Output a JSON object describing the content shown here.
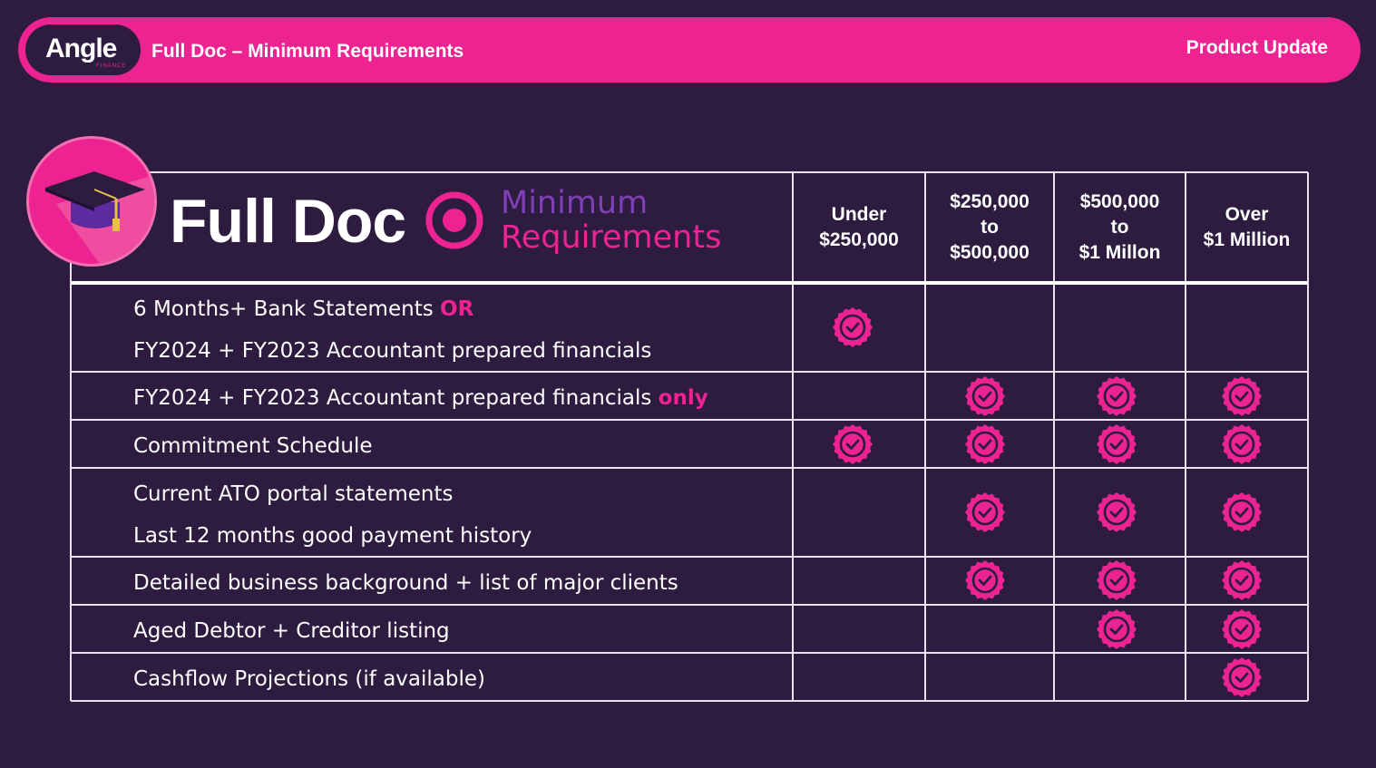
{
  "header": {
    "logo_text": "Angle",
    "logo_subtext": "FINANCE",
    "title": "Full Doc – Minimum Requirements",
    "right_label": "Product Update"
  },
  "hero": {
    "title": "Full Doc",
    "subtitle_line1": "Minimum",
    "subtitle_line2": "Requirements",
    "icon": "graduation-cap-icon"
  },
  "columns": [
    {
      "line1": "Under",
      "line2": "$250,000",
      "line3": ""
    },
    {
      "line1": "$250,000",
      "line2": "to",
      "line3": "$500,000"
    },
    {
      "line1": "$500,000",
      "line2": "to",
      "line3": "$1 Millon"
    },
    {
      "line1": "Over",
      "line2": "$1 Million",
      "line3": ""
    }
  ],
  "rows": [
    {
      "line1": "6 Months+ Bank Statements ",
      "line1_accent": "OR",
      "line2": "FY2024 + FY2023 Accountant prepared financials",
      "checks": [
        true,
        false,
        false,
        false
      ]
    },
    {
      "line1": "FY2024 + FY2023 Accountant prepared financials ",
      "line1_accent": "only",
      "line2": "",
      "checks": [
        false,
        true,
        true,
        true
      ]
    },
    {
      "line1": "Commitment Schedule",
      "line1_accent": "",
      "line2": "",
      "checks": [
        true,
        true,
        true,
        true
      ]
    },
    {
      "line1": "Current ATO portal statements",
      "line1_accent": "",
      "line2": "Last 12 months good payment history",
      "checks": [
        false,
        true,
        true,
        true
      ]
    },
    {
      "line1": "Detailed business background + list of major clients",
      "line1_accent": "",
      "line2": "",
      "checks": [
        false,
        true,
        true,
        true
      ]
    },
    {
      "line1": "Aged Debtor + Creditor listing",
      "line1_accent": "",
      "line2": "",
      "checks": [
        false,
        false,
        true,
        true
      ]
    },
    {
      "line1": "Cashflow Projections (if available)",
      "line1_accent": "",
      "line2": "",
      "checks": [
        false,
        false,
        false,
        true
      ]
    }
  ],
  "colors": {
    "background": "#2d1c40",
    "accent_pink": "#ec2390",
    "accent_purple": "#7f3fb5",
    "check_icon": "badge-check-icon"
  }
}
